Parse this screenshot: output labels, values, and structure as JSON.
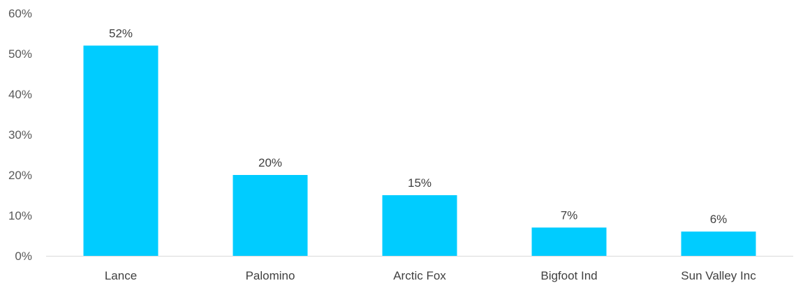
{
  "chart_data": {
    "type": "bar",
    "categories": [
      "Lance",
      "Palomino",
      "Arctic Fox",
      "Bigfoot Ind",
      "Sun Valley Inc"
    ],
    "values": [
      52,
      20,
      15,
      7,
      6
    ],
    "data_labels": [
      "52%",
      "20%",
      "15%",
      "7%",
      "6%"
    ],
    "y_ticks": [
      {
        "value": 0,
        "label": "0%"
      },
      {
        "value": 10,
        "label": "10%"
      },
      {
        "value": 20,
        "label": "20%"
      },
      {
        "value": 30,
        "label": "30%"
      },
      {
        "value": 40,
        "label": "40%"
      },
      {
        "value": 50,
        "label": "50%"
      },
      {
        "value": 60,
        "label": "60%"
      }
    ],
    "ylim": [
      0,
      60
    ],
    "title": "",
    "xlabel": "",
    "ylabel": "",
    "grid": false,
    "legend": "none",
    "bar_color": "#00CCFF",
    "axis_color": "#D9D9D9"
  }
}
